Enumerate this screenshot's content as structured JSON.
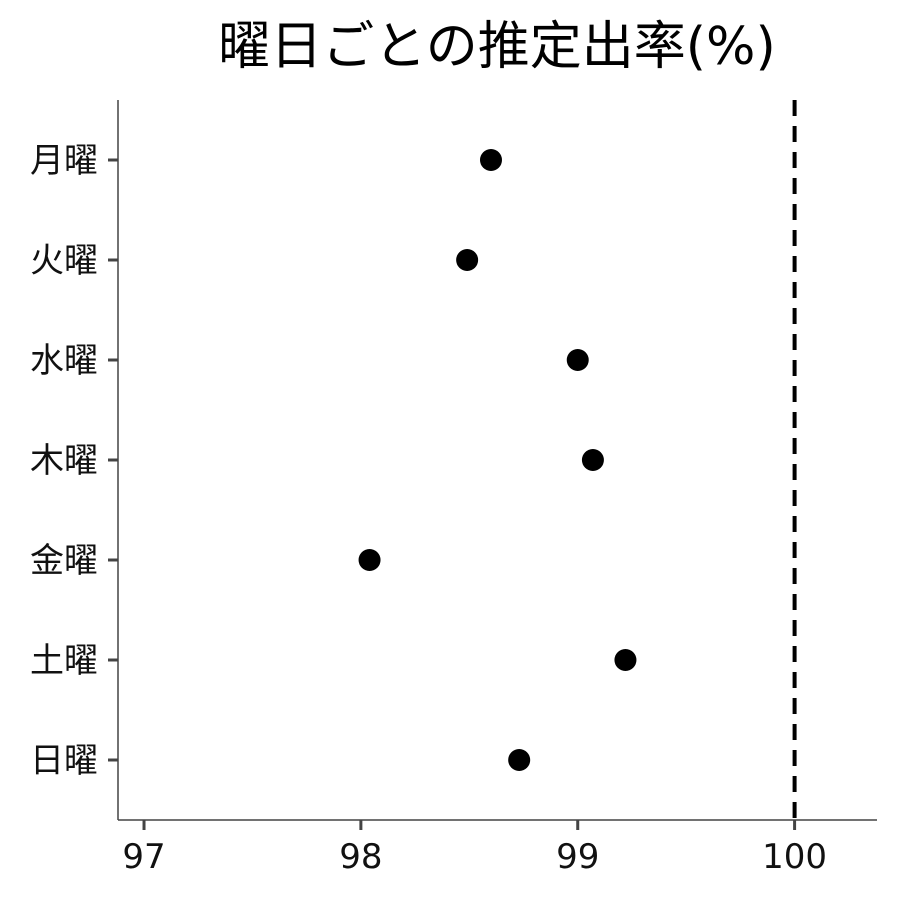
{
  "chart_data": {
    "type": "scatter",
    "title": "曜日ごとの推定出率(%)",
    "xlabel": "",
    "ylabel": "",
    "xlim": [
      96.88,
      100.38
    ],
    "x_ticks": [
      97,
      98,
      99,
      100
    ],
    "x_tick_labels": [
      "97",
      "98",
      "99",
      "100"
    ],
    "categories": [
      "月曜",
      "火曜",
      "水曜",
      "木曜",
      "金曜",
      "土曜",
      "日曜"
    ],
    "values": [
      98.6,
      98.49,
      99.0,
      99.07,
      98.04,
      99.22,
      98.73
    ],
    "reference_line": {
      "x": 100,
      "style": "dashed"
    },
    "grid": false,
    "legend": "none",
    "colors": {
      "point": "#000000",
      "reference": "#000000"
    }
  }
}
